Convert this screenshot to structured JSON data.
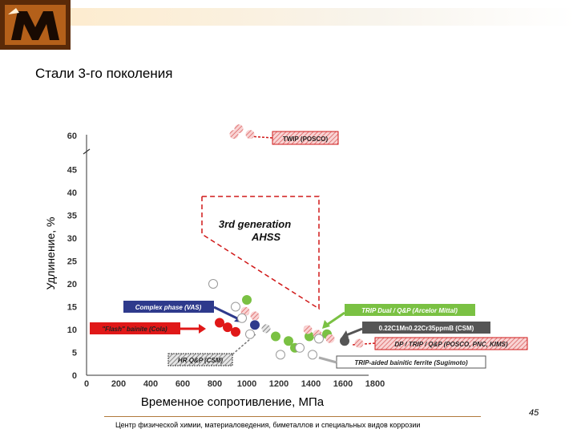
{
  "slide": {
    "title": "Стали 3-го поколения",
    "footer": "Центр физической химии, материаловедения, биметаллов и специальных видов коррозии",
    "page_number": "45"
  },
  "chart_data": {
    "type": "scatter",
    "xlabel": "Временное сопротивление, МПа",
    "ylabel": "Удлинение, %",
    "x_ticks": [
      0,
      200,
      400,
      600,
      800,
      1000,
      1200,
      1400,
      1600,
      1800
    ],
    "y_ticks": [
      0,
      5,
      10,
      15,
      20,
      25,
      30,
      35,
      40,
      45,
      60
    ],
    "xlim": [
      0,
      1900
    ],
    "ylim": [
      0,
      62
    ],
    "grid": false,
    "region_label": [
      "3rd generation",
      "AHSS"
    ],
    "series": [
      {
        "name": "TWIP (POSCO)",
        "color": "#f2a8a8",
        "marker": "hatched-circle",
        "points": [
          [
            950,
            63
          ],
          [
            920,
            60.5
          ],
          [
            1020,
            60.5
          ]
        ]
      },
      {
        "name": "Complex phase (VAS)",
        "color": "#2e3a8c",
        "marker": "filled-circle",
        "points": [
          [
            1050,
            11
          ]
        ]
      },
      {
        "name": "\"Flash\" bainite (Cola)",
        "color": "#e01818",
        "marker": "filled-circle",
        "points": [
          [
            830,
            11.5
          ],
          [
            880,
            10.5
          ],
          [
            930,
            9.5
          ]
        ]
      },
      {
        "name": "HR Q&P (CSM)",
        "color": "#555555",
        "marker": "hatched-circle",
        "points": [
          [
            1120,
            10.2
          ]
        ]
      },
      {
        "name": "TRIP Dual / Q&P (Arcelor Mittal)",
        "color": "#7ac143",
        "marker": "filled-circle",
        "points": [
          [
            1000,
            16.5
          ],
          [
            1180,
            8.5
          ],
          [
            1260,
            7.5
          ],
          [
            1300,
            6
          ],
          [
            1390,
            8.5
          ],
          [
            1500,
            9
          ]
        ]
      },
      {
        "name": "0.22C1Mn0.22Cr35ppmB (CSM)",
        "color": "#555555",
        "marker": "filled-circle",
        "points": [
          [
            1610,
            7.5
          ]
        ]
      },
      {
        "name": "DP / TRIP / Q&P (POSCO, PNC, KIMS)",
        "color": "#f2a8a8",
        "marker": "hatched-circle",
        "points": [
          [
            990,
            14
          ],
          [
            1050,
            13
          ],
          [
            1380,
            10
          ],
          [
            1440,
            9
          ],
          [
            1520,
            8
          ],
          [
            1700,
            7
          ]
        ]
      },
      {
        "name": "TRIP-aided bainitic ferrite (Sugimoto)",
        "color": "#bbbbbb",
        "marker": "open-circle",
        "points": [
          [
            790,
            20
          ],
          [
            930,
            15
          ],
          [
            970,
            12.5
          ],
          [
            1020,
            9
          ],
          [
            1210,
            4.5
          ],
          [
            1330,
            6
          ],
          [
            1410,
            4.5
          ],
          [
            1450,
            8
          ]
        ]
      }
    ]
  }
}
